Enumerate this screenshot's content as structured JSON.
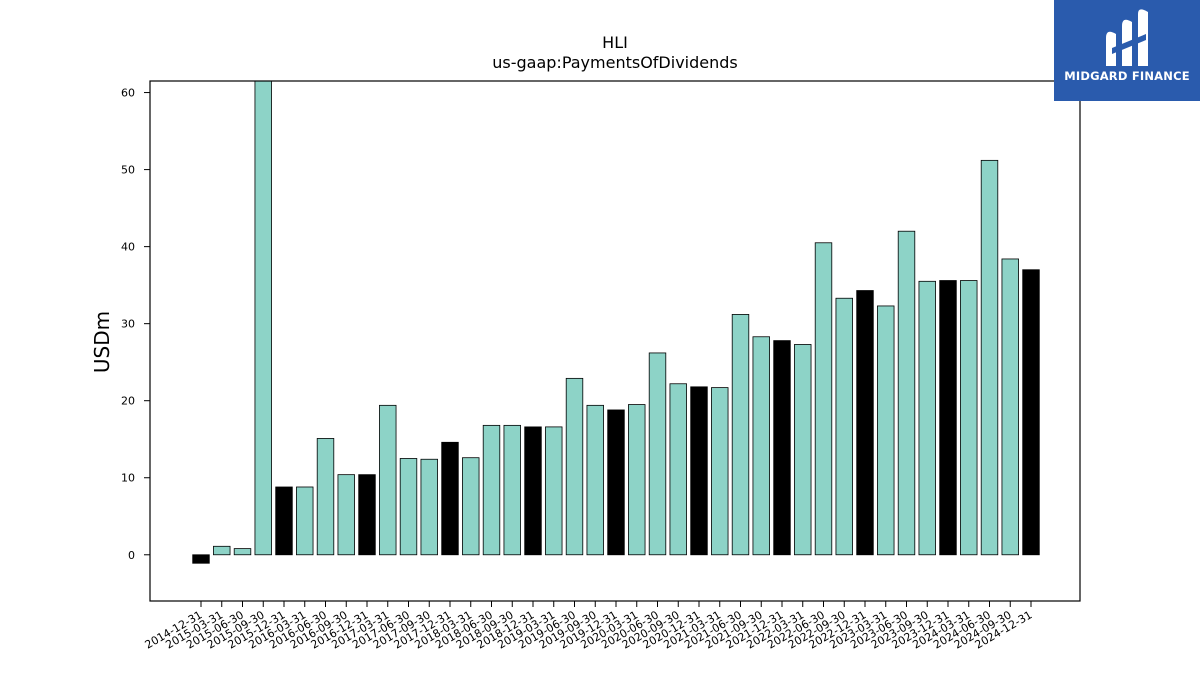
{
  "brand": {
    "name": "MIDGARD FINANCE",
    "logo_icon": "midgard-m-icon",
    "logo_bg": "#2a5bad"
  },
  "colors": {
    "bar_primary": "#8dd3c7",
    "bar_alt": "#000000",
    "axis": "#000000"
  },
  "chart_data": {
    "type": "bar",
    "title": "HLI",
    "subtitle": "us-gaap:PaymentsOfDividends",
    "xlabel": "",
    "ylabel": "USDm",
    "ylim": [
      -6,
      61.5
    ],
    "yticks": [
      0,
      10,
      20,
      30,
      40,
      50,
      60
    ],
    "grid": false,
    "legend": "none",
    "x_tick_rotation_deg": 30,
    "categories": [
      "2014-12-31",
      "2015-03-31",
      "2015-06-30",
      "2015-09-30",
      "2015-12-31",
      "2016-03-31",
      "2016-06-30",
      "2016-09-30",
      "2016-12-31",
      "2017-03-31",
      "2017-06-30",
      "2017-09-30",
      "2017-12-31",
      "2018-03-31",
      "2018-06-30",
      "2018-09-30",
      "2018-12-31",
      "2019-03-31",
      "2019-06-30",
      "2019-09-30",
      "2019-12-31",
      "2020-03-31",
      "2020-06-30",
      "2020-09-30",
      "2020-12-31",
      "2021-03-31",
      "2021-06-30",
      "2021-09-30",
      "2021-12-31",
      "2022-03-31",
      "2022-06-30",
      "2022-09-30",
      "2022-12-31",
      "2023-03-31",
      "2023-06-30",
      "2023-09-30",
      "2023-12-31",
      "2024-03-31",
      "2024-06-30",
      "2024-09-30",
      "2024-12-31"
    ],
    "values": [
      -1.1,
      1.1,
      0.8,
      61.5,
      8.8,
      8.8,
      15.1,
      10.4,
      10.4,
      19.4,
      12.5,
      12.4,
      14.6,
      12.6,
      16.8,
      16.8,
      16.6,
      16.6,
      22.9,
      19.4,
      18.8,
      19.5,
      26.2,
      22.2,
      21.8,
      21.7,
      31.2,
      28.3,
      27.8,
      27.3,
      40.5,
      33.3,
      34.3,
      32.3,
      42.0,
      35.5,
      35.6,
      35.6,
      51.2,
      38.4,
      37.0
    ],
    "bar_is_alt": [
      true,
      false,
      false,
      false,
      true,
      false,
      false,
      false,
      true,
      false,
      false,
      false,
      true,
      false,
      false,
      false,
      true,
      false,
      false,
      false,
      true,
      false,
      false,
      false,
      true,
      false,
      false,
      false,
      true,
      false,
      false,
      false,
      true,
      false,
      false,
      false,
      true,
      false,
      false,
      false,
      true
    ]
  }
}
